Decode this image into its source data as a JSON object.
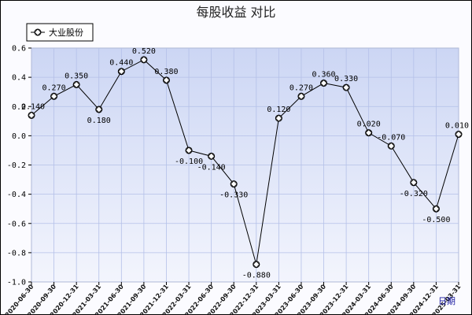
{
  "chart_data": {
    "type": "line",
    "title": "每股收益  对比",
    "legend": {
      "label": "大业股份",
      "placement": "top-left",
      "marker": "diamond-circle"
    },
    "x_unit_label": "日期",
    "categories": [
      "2020-06-30",
      "2020-09-30",
      "2020-12-31",
      "2021-03-31",
      "2021-06-30",
      "2021-09-30",
      "2021-12-31",
      "2022-03-31",
      "2022-06-30",
      "2022-09-30",
      "2022-12-31",
      "2023-03-31",
      "2023-06-30",
      "2023-09-30",
      "2023-12-31",
      "2024-03-31",
      "2024-06-30",
      "2024-09-30",
      "2024-12-31",
      "2025-03-31"
    ],
    "series": [
      {
        "name": "大业股份",
        "values": [
          0.14,
          0.27,
          0.35,
          0.18,
          0.44,
          0.52,
          0.38,
          -0.1,
          -0.14,
          -0.33,
          -0.88,
          0.12,
          0.27,
          0.36,
          0.33,
          0.02,
          -0.07,
          -0.32,
          -0.5,
          0.01
        ],
        "labels": [
          "0.140",
          "0.270",
          "0.350",
          "0.180",
          "0.440",
          "0.520",
          "0.380",
          "-0.100",
          "-0.140",
          "-0.330",
          "-0.880",
          "0.120",
          "0.270",
          "0.360",
          "0.330",
          "0.020",
          "-0.070",
          "-0.320",
          "-0.500",
          "0.010"
        ]
      }
    ],
    "ylim": [
      -1.0,
      0.6
    ],
    "yticks": [
      {
        "v": 0.6,
        "label": "0.6"
      },
      {
        "v": 0.4,
        "label": "0.4"
      },
      {
        "v": 0.2,
        "label": "0.2"
      },
      {
        "v": 0.0,
        "label": "0.0"
      },
      {
        "v": -0.2,
        "label": "-0.2"
      },
      {
        "v": -0.4,
        "label": "-0.4"
      },
      {
        "v": -0.6,
        "label": "-0.6"
      },
      {
        "v": -0.8,
        "label": "-0.8"
      },
      {
        "v": -1.0,
        "label": "-1.0"
      }
    ],
    "grid": true,
    "colors": {
      "plot_bg_top": "#ccd6f4",
      "plot_bg_bottom": "#f3f5fd",
      "grid": "#b4c0e8",
      "line": "#000000",
      "marker_fill": "#ffffff"
    }
  }
}
